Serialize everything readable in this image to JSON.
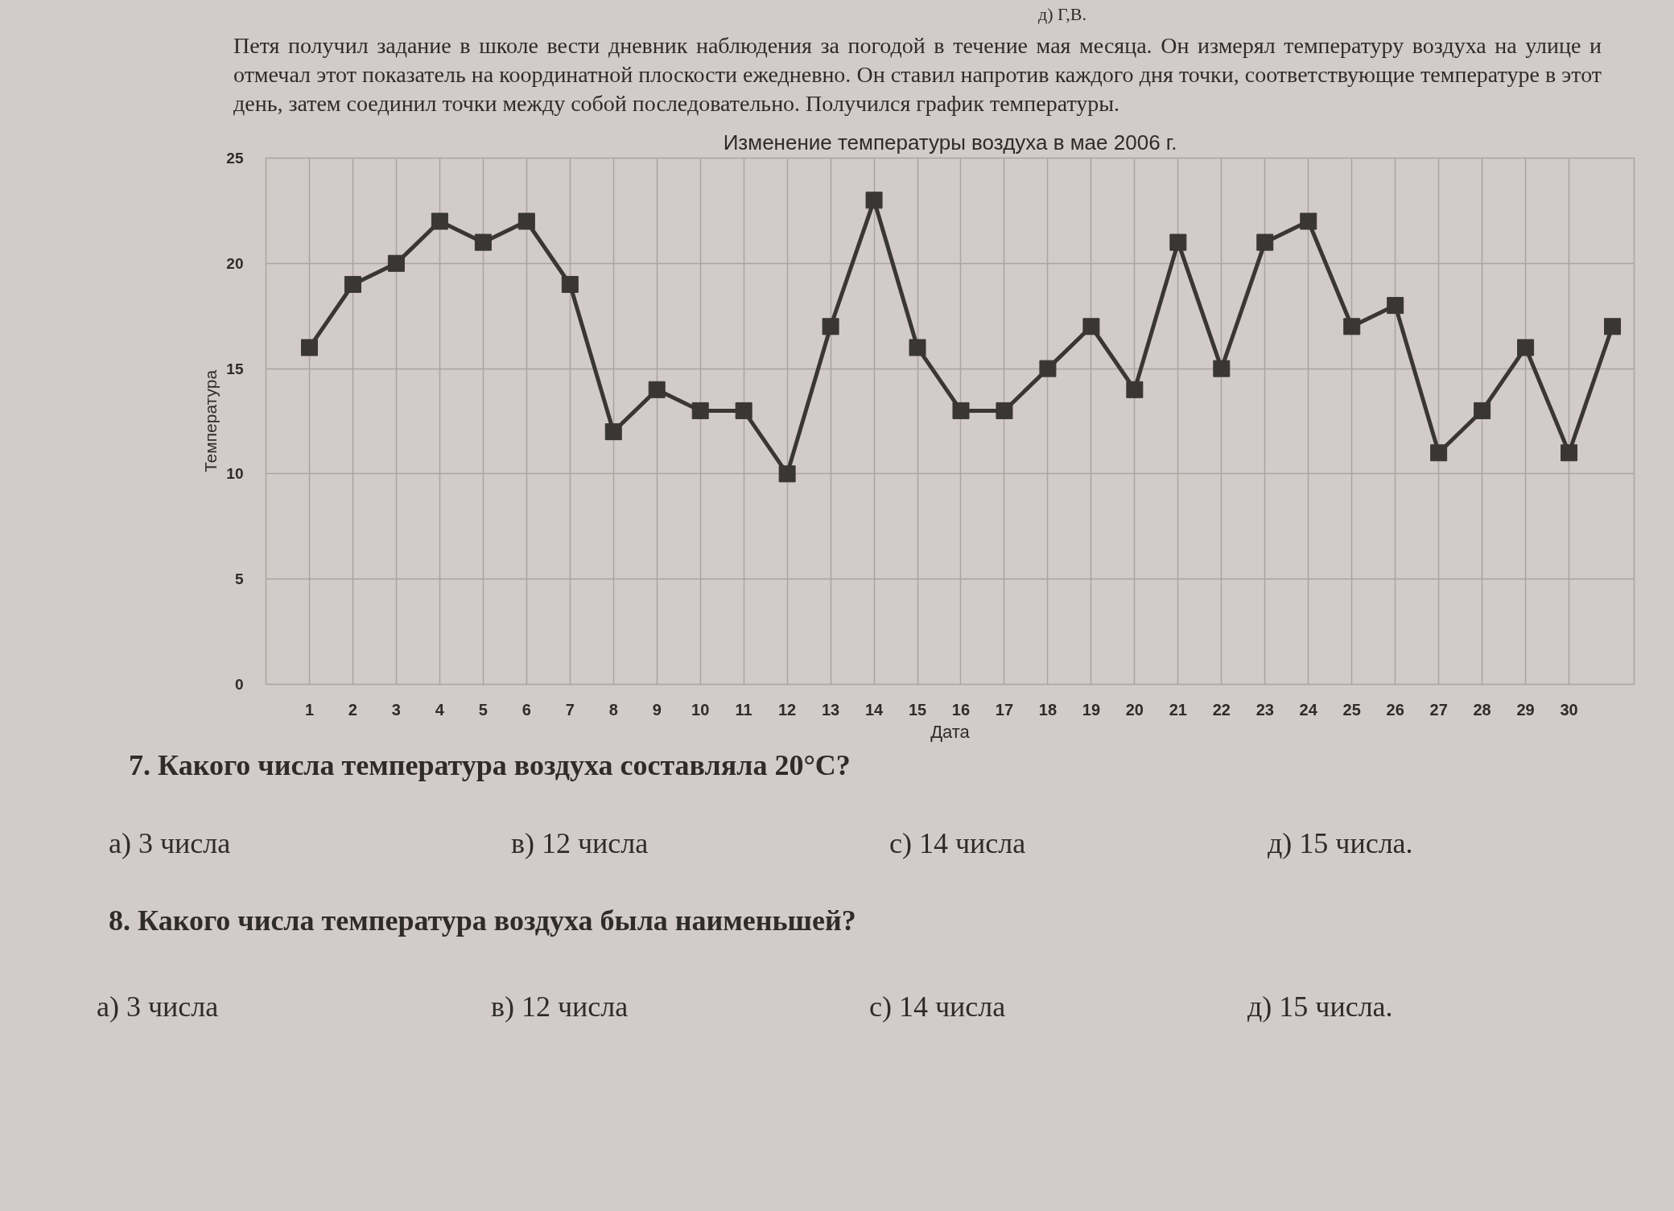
{
  "chart_data": {
    "type": "line",
    "title": "Изменение температуры воздуха в мае 2006 г.",
    "xlabel": "Дата",
    "ylabel": "Температура",
    "x": [
      1,
      2,
      3,
      4,
      5,
      6,
      7,
      8,
      9,
      10,
      11,
      12,
      13,
      14,
      15,
      16,
      17,
      18,
      19,
      20,
      21,
      22,
      23,
      24,
      25,
      26,
      27,
      28,
      29,
      30,
      31
    ],
    "series": [
      {
        "color": "#3a3636",
        "values": [
          16,
          19,
          20,
          22,
          21,
          22,
          19,
          12,
          14,
          13,
          13,
          10,
          17,
          23,
          16,
          13,
          13,
          15,
          17,
          14,
          21,
          15,
          21,
          22,
          17,
          18,
          11,
          13,
          16,
          11,
          17
        ]
      }
    ],
    "xlim": [
      0,
      31.5
    ],
    "xticks": [
      1,
      2,
      3,
      4,
      5,
      6,
      7,
      8,
      9,
      10,
      11,
      12,
      13,
      14,
      15,
      16,
      17,
      18,
      19,
      20,
      21,
      22,
      23,
      24,
      25,
      26,
      27,
      28,
      29,
      30
    ],
    "ylim": [
      0,
      25
    ],
    "yticks": [
      0,
      5,
      10,
      15,
      20,
      25
    ],
    "grid": true,
    "marker": "square",
    "line_style": "solid",
    "annotations": [
      "д) Г,В.",
      "Петя получил задание в школе вести дневник наблюдения за погодой в течение мая месяца. Он измерял температуру воздуха на улице и отмечал этот показатель на координатной плоскости ежедневно. Он ставил напротив каждого дня точки, соответствующие температуре в этот день, затем соединил точки между собой последовательно. Получился график температуры.",
      "7. Какого числа температура воздуха составляла 20°C?",
      "а) 3 числа",
      "в) 12 числа",
      "с) 14 числа",
      "д) 15 числа.",
      "8. Какого числа температура воздуха была наименьшей?",
      "а) 3 числа",
      "в) 12 числа",
      "с) 14 числа",
      "д) 15 числа."
    ]
  }
}
